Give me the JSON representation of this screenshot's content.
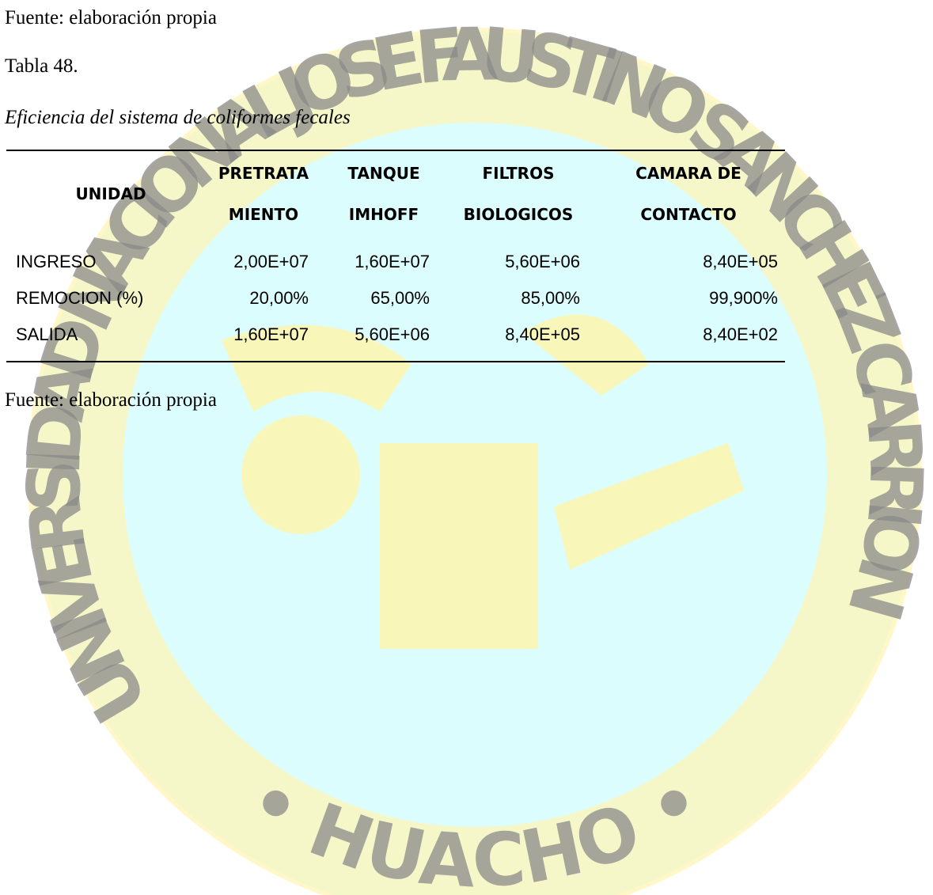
{
  "header": {
    "source_top": "Fuente: elaboración propia",
    "table_number": "Tabla 48.",
    "table_title": "Eficiencia del sistema de coliformes fecales"
  },
  "table": {
    "columns": [
      [
        "UNIDAD"
      ],
      [
        "PRETRATA",
        "MIENTO"
      ],
      [
        "TANQUE",
        "IMHOFF"
      ],
      [
        "FILTROS",
        "BIOLOGICOS"
      ],
      [
        "CAMARA DE",
        "CONTACTO"
      ]
    ],
    "rows": [
      [
        "INGRESO",
        "2,00E+07",
        "1,60E+07",
        "5,60E+06",
        "8,40E+05"
      ],
      [
        "REMOCION (%)",
        "20,00%",
        "65,00%",
        "85,00%",
        "99,900%"
      ],
      [
        "SALIDA",
        "1,60E+07",
        "5,60E+06",
        "8,40E+05",
        "8,40E+02"
      ]
    ]
  },
  "footer": {
    "source": "Fuente: elaboración propia"
  },
  "watermark": {
    "top": "UNIVERSIDAD NACIONAL JOSE FAUSTINO SANCHEZ CARRION",
    "bottom": "• HUACHO •"
  }
}
